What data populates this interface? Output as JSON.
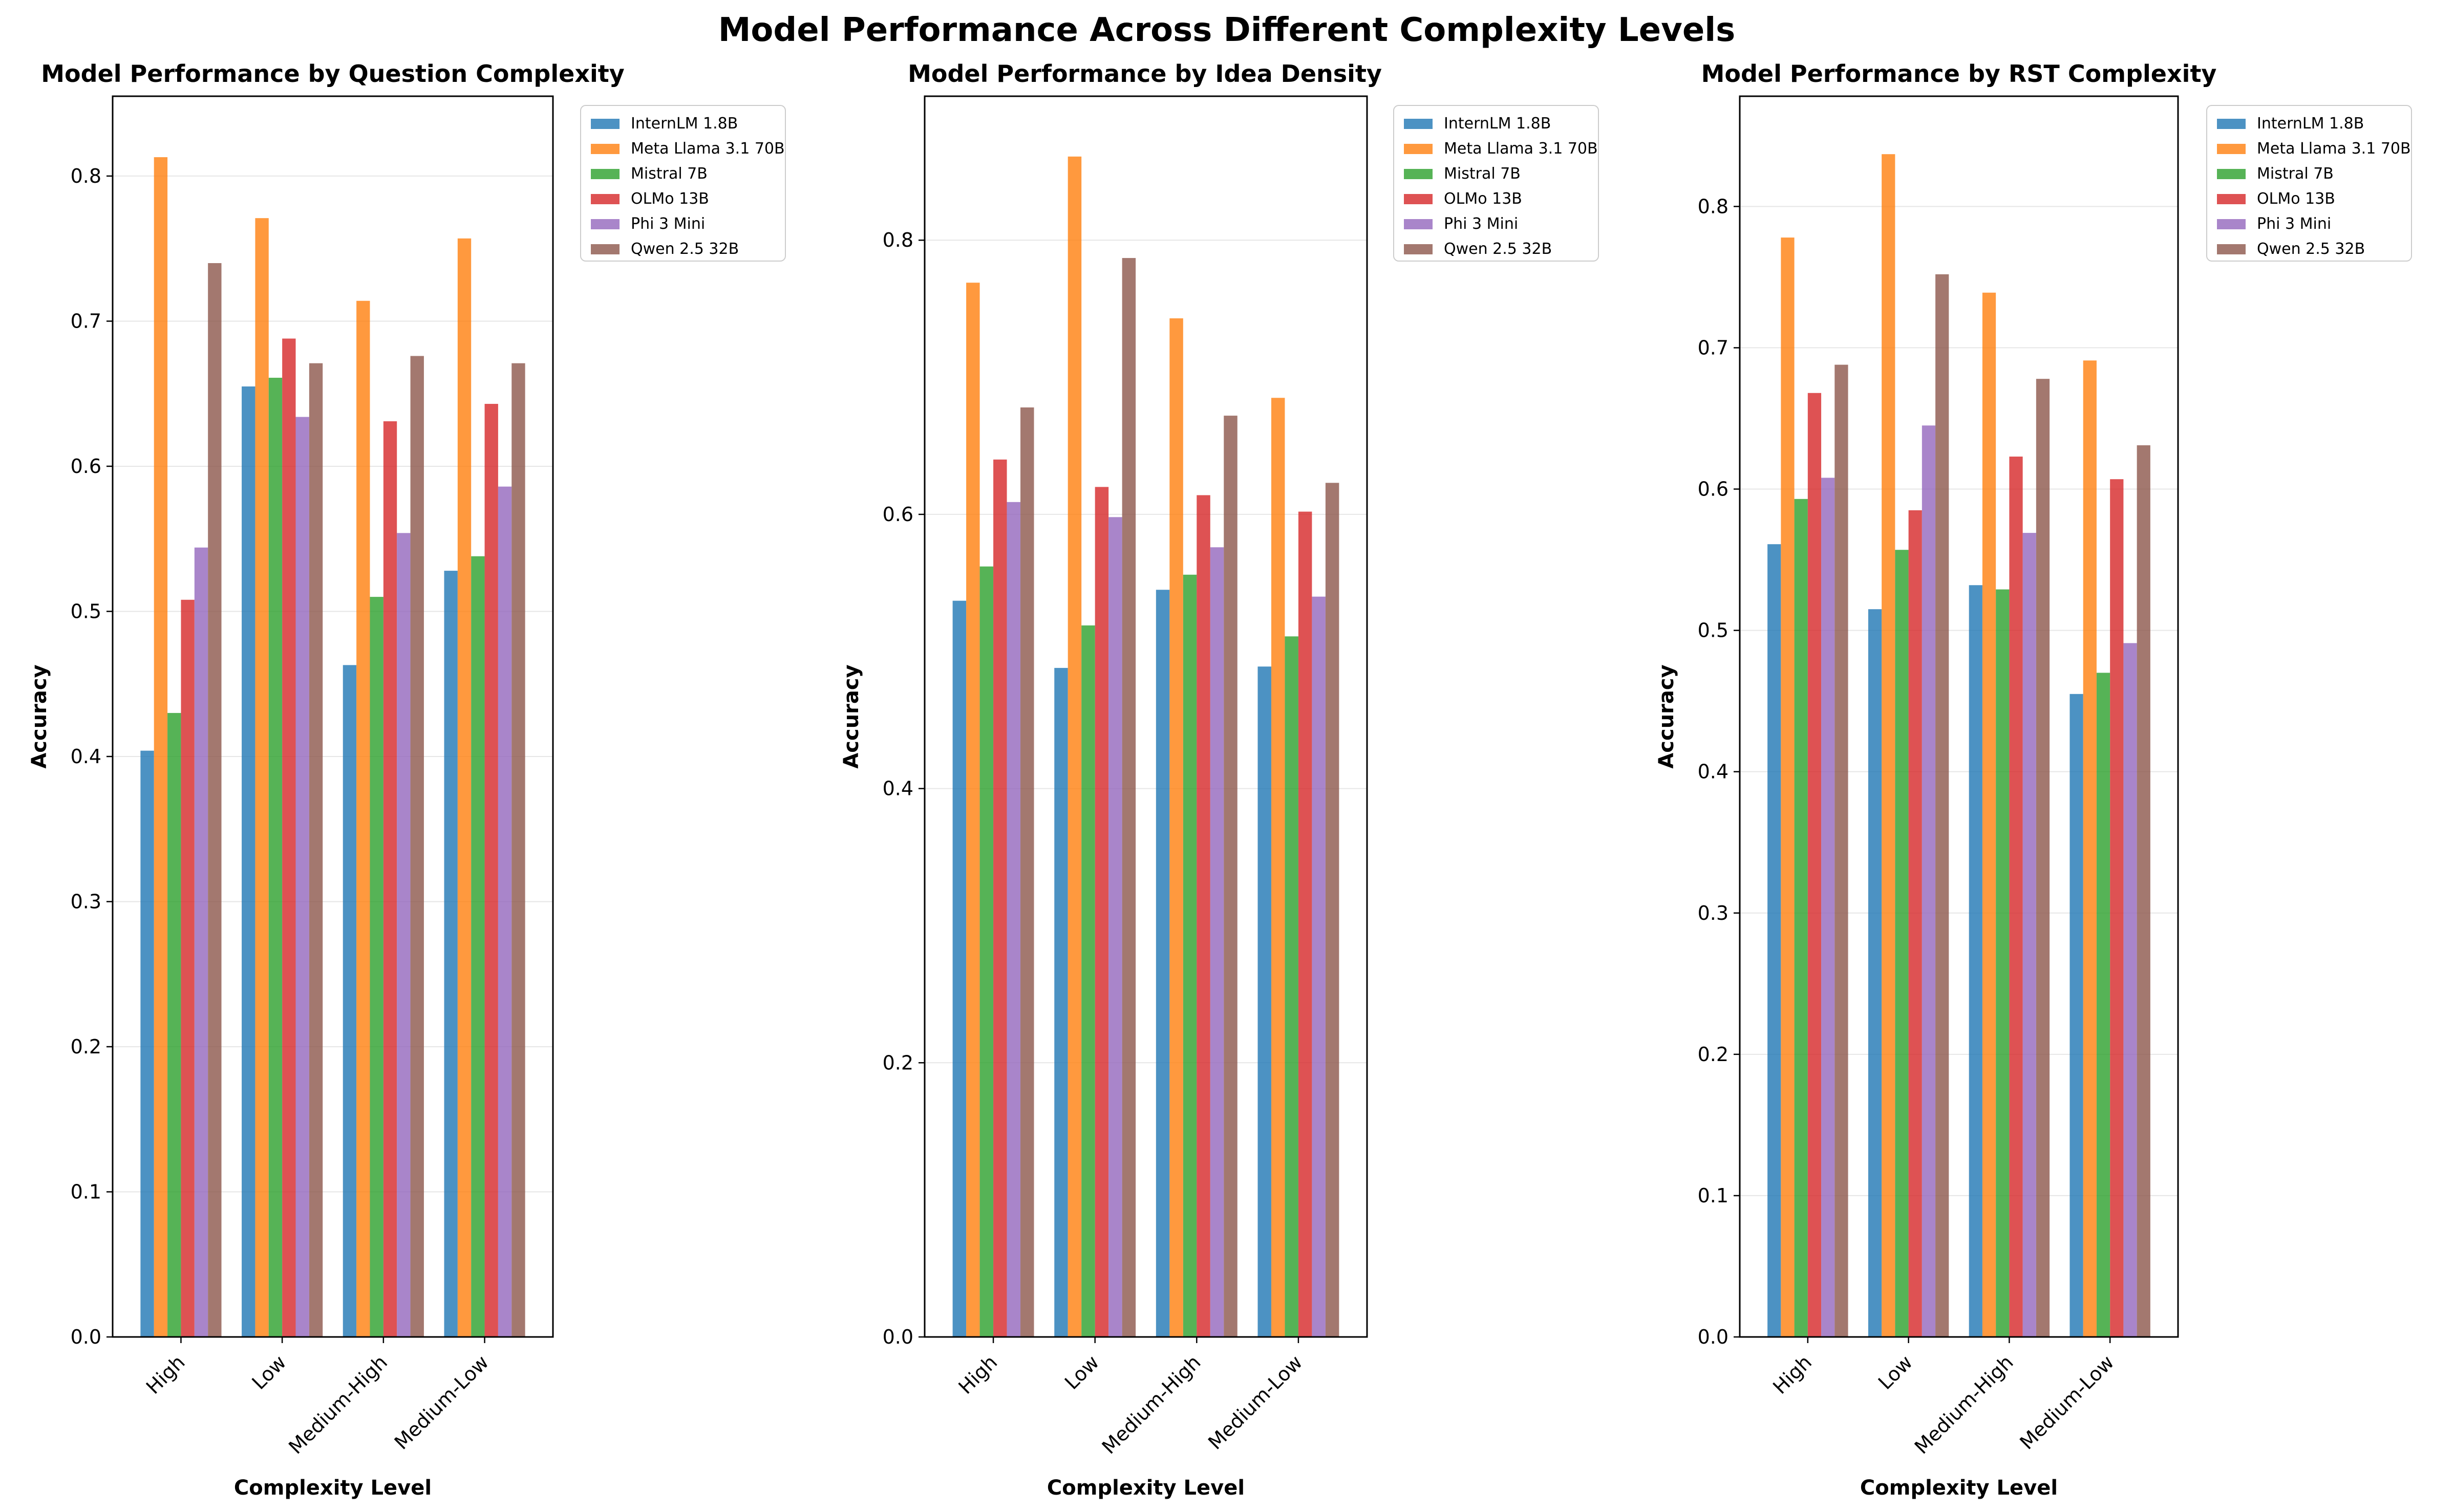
{
  "figure": {
    "title": "Model Performance Across Different Complexity Levels"
  },
  "chart_data": [
    {
      "type": "bar",
      "title": "Model Performance by Question Complexity",
      "xlabel": "Complexity Level",
      "ylabel": "Accuracy",
      "categories": [
        "High",
        "Low",
        "Medium-High",
        "Medium-Low"
      ],
      "ylim": [
        0,
        0.855
      ],
      "yticks": [
        0.0,
        0.1,
        0.2,
        0.3,
        0.4,
        0.5,
        0.6,
        0.7,
        0.8
      ],
      "ytick_labels": [
        "0.0",
        "0.1",
        "0.2",
        "0.3",
        "0.4",
        "0.5",
        "0.6",
        "0.7",
        "0.8"
      ],
      "grid": "y",
      "legend": "outside-right-top",
      "series": [
        {
          "name": "InternLM 1.8B",
          "values": [
            0.404,
            0.655,
            0.463,
            0.528
          ]
        },
        {
          "name": "Meta Llama 3.1 70B",
          "values": [
            0.813,
            0.771,
            0.714,
            0.757
          ]
        },
        {
          "name": "Mistral 7B",
          "values": [
            0.43,
            0.661,
            0.51,
            0.538
          ]
        },
        {
          "name": "OLMo 13B",
          "values": [
            0.508,
            0.688,
            0.631,
            0.643
          ]
        },
        {
          "name": "Phi 3 Mini",
          "values": [
            0.544,
            0.634,
            0.554,
            0.586
          ]
        },
        {
          "name": "Qwen 2.5 32B",
          "values": [
            0.74,
            0.671,
            0.676,
            0.671
          ]
        }
      ]
    },
    {
      "type": "bar",
      "title": "Model Performance by Idea Density",
      "xlabel": "Complexity Level",
      "ylabel": "Accuracy",
      "categories": [
        "High",
        "Low",
        "Medium-High",
        "Medium-Low"
      ],
      "ylim": [
        0,
        0.905
      ],
      "yticks": [
        0.0,
        0.2,
        0.4,
        0.6,
        0.8
      ],
      "ytick_labels": [
        "0.0",
        "0.2",
        "0.4",
        "0.6",
        "0.8"
      ],
      "grid": "y",
      "legend": "outside-right-top",
      "series": [
        {
          "name": "InternLM 1.8B",
          "values": [
            0.537,
            0.488,
            0.545,
            0.489
          ]
        },
        {
          "name": "Meta Llama 3.1 70B",
          "values": [
            0.769,
            0.861,
            0.743,
            0.685
          ]
        },
        {
          "name": "Mistral 7B",
          "values": [
            0.562,
            0.519,
            0.556,
            0.511
          ]
        },
        {
          "name": "OLMo 13B",
          "values": [
            0.64,
            0.62,
            0.614,
            0.602
          ]
        },
        {
          "name": "Phi 3 Mini",
          "values": [
            0.609,
            0.598,
            0.576,
            0.54
          ]
        },
        {
          "name": "Qwen 2.5 32B",
          "values": [
            0.678,
            0.787,
            0.672,
            0.623
          ]
        }
      ]
    },
    {
      "type": "bar",
      "title": "Model Performance by RST Complexity",
      "xlabel": "Complexity Level",
      "ylabel": "Accuracy",
      "categories": [
        "High",
        "Low",
        "Medium-High",
        "Medium-Low"
      ],
      "ylim": [
        0,
        0.878
      ],
      "yticks": [
        0.0,
        0.1,
        0.2,
        0.3,
        0.4,
        0.5,
        0.6,
        0.7,
        0.8
      ],
      "ytick_labels": [
        "0.0",
        "0.1",
        "0.2",
        "0.3",
        "0.4",
        "0.5",
        "0.6",
        "0.7",
        "0.8"
      ],
      "grid": "y",
      "legend": "outside-right-top",
      "series": [
        {
          "name": "InternLM 1.8B",
          "values": [
            0.561,
            0.515,
            0.532,
            0.455
          ]
        },
        {
          "name": "Meta Llama 3.1 70B",
          "values": [
            0.778,
            0.837,
            0.739,
            0.691
          ]
        },
        {
          "name": "Mistral 7B",
          "values": [
            0.593,
            0.557,
            0.529,
            0.47
          ]
        },
        {
          "name": "OLMo 13B",
          "values": [
            0.668,
            0.585,
            0.623,
            0.607
          ]
        },
        {
          "name": "Phi 3 Mini",
          "values": [
            0.608,
            0.645,
            0.569,
            0.491
          ]
        },
        {
          "name": "Qwen 2.5 32B",
          "values": [
            0.688,
            0.752,
            0.678,
            0.631
          ]
        }
      ]
    }
  ],
  "colors": [
    "#1f77b4",
    "#ff7f0e",
    "#2ca02c",
    "#d62728",
    "#9467bd",
    "#8c564b"
  ]
}
